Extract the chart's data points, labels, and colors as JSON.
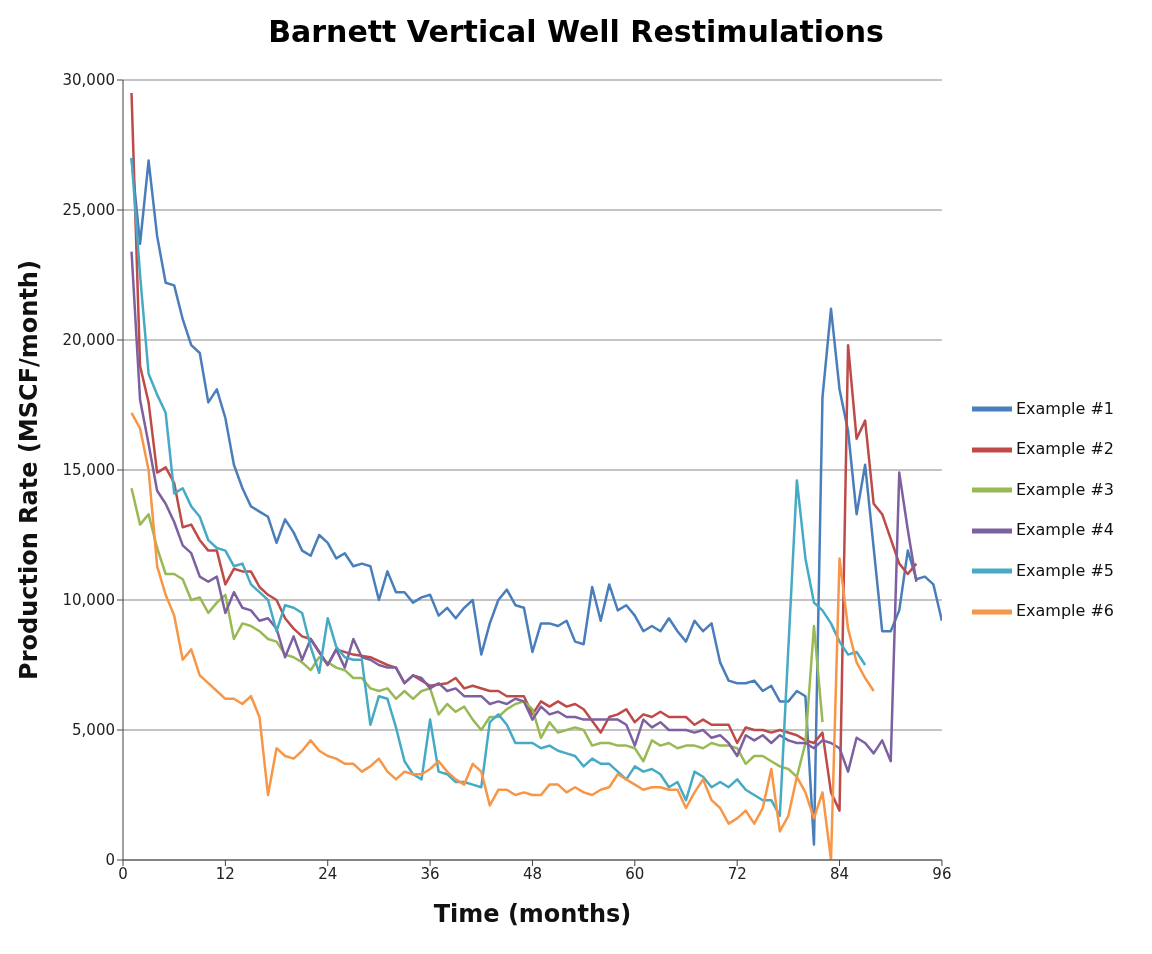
{
  "chart_data": {
    "type": "line",
    "title": "Barnett Vertical Well Restimulations",
    "xlabel": "Time (months)",
    "ylabel": "Production Rate (MSCF/month)",
    "xlim": [
      0,
      96
    ],
    "xticks": [
      0,
      12,
      24,
      36,
      48,
      60,
      72,
      84,
      96
    ],
    "ylim": [
      0,
      30000
    ],
    "yticks": [
      {
        "value": 0,
        "label": "0"
      },
      {
        "value": 5000,
        "label": "5,000"
      },
      {
        "value": 10000,
        "label": "10,000"
      },
      {
        "value": 15000,
        "label": "15,000"
      },
      {
        "value": 20000,
        "label": "20,000"
      },
      {
        "value": 25000,
        "label": "25,000"
      },
      {
        "value": 30000,
        "label": "30,000"
      }
    ],
    "grid": "y",
    "legend": "right",
    "marker": "none",
    "line_style": "solid",
    "series": [
      {
        "name": "Example #1",
        "color": "#4a7ebb",
        "x": [
          1,
          2,
          3,
          4,
          5,
          6,
          7,
          8,
          9,
          10,
          11,
          12,
          13,
          14,
          15,
          16,
          17,
          18,
          19,
          20,
          21,
          22,
          23,
          24,
          25,
          26,
          27,
          28,
          29,
          30,
          31,
          32,
          33,
          34,
          35,
          36,
          37,
          38,
          39,
          40,
          41,
          42,
          43,
          44,
          45,
          46,
          47,
          48,
          49,
          50,
          51,
          52,
          53,
          54,
          55,
          56,
          57,
          58,
          59,
          60,
          61,
          62,
          63,
          64,
          65,
          66,
          67,
          68,
          69,
          70,
          71,
          72,
          73,
          74,
          75,
          76,
          77,
          78,
          79,
          80,
          81,
          82,
          83,
          84,
          85,
          86,
          87,
          89,
          90,
          91,
          92,
          93,
          94,
          95,
          96
        ],
        "values": [
          27000,
          23700,
          26900,
          24000,
          22200,
          22100,
          20800,
          19800,
          19500,
          17600,
          18100,
          17000,
          15200,
          14300,
          13600,
          13400,
          13200,
          12200,
          13100,
          12600,
          11900,
          11700,
          12500,
          12200,
          11600,
          11800,
          11300,
          11400,
          11300,
          10000,
          11100,
          10300,
          10300,
          9900,
          10100,
          10200,
          9400,
          9700,
          9300,
          9700,
          10000,
          7900,
          9100,
          10000,
          10400,
          9800,
          9700,
          8000,
          9100,
          9100,
          9000,
          9200,
          8400,
          8300,
          10500,
          9200,
          10600,
          9600,
          9800,
          9400,
          8800,
          9000,
          8800,
          9300,
          8800,
          8400,
          9200,
          8800,
          9100,
          7600,
          6900,
          6800,
          6800,
          6900,
          6500,
          6700,
          6100,
          6100,
          6500,
          6300,
          600,
          17800,
          21200,
          18100,
          16500,
          13300,
          15200,
          8800,
          8800,
          9600,
          11900,
          10800,
          10900,
          10600,
          9200
        ]
      },
      {
        "name": "Example #2",
        "color": "#be4b48",
        "x": [
          1,
          2,
          3,
          4,
          5,
          6,
          7,
          8,
          9,
          10,
          11,
          12,
          13,
          14,
          15,
          16,
          17,
          18,
          19,
          20,
          21,
          22,
          24,
          25,
          27,
          29,
          31,
          32,
          33,
          34,
          36,
          38,
          39,
          40,
          41,
          43,
          44,
          45,
          47,
          48,
          49,
          50,
          51,
          52,
          53,
          54,
          56,
          57,
          58,
          59,
          60,
          61,
          62,
          63,
          64,
          66,
          67,
          68,
          69,
          71,
          72,
          73,
          74,
          75,
          76,
          77,
          79,
          80,
          81,
          82,
          83,
          84,
          85,
          86,
          87,
          88,
          89,
          91,
          92,
          93
        ],
        "values": [
          29500,
          19000,
          17600,
          14900,
          15100,
          14500,
          12800,
          12900,
          12300,
          11900,
          11900,
          10600,
          11200,
          11100,
          11100,
          10500,
          10200,
          10000,
          9300,
          8900,
          8600,
          8500,
          7500,
          8100,
          7900,
          7800,
          7500,
          7400,
          6800,
          7100,
          6700,
          6800,
          7000,
          6600,
          6700,
          6500,
          6500,
          6300,
          6300,
          5600,
          6100,
          5900,
          6100,
          5900,
          6000,
          5800,
          4900,
          5500,
          5600,
          5800,
          5300,
          5600,
          5500,
          5700,
          5500,
          5500,
          5200,
          5400,
          5200,
          5200,
          4500,
          5100,
          5000,
          5000,
          4900,
          5000,
          4800,
          4600,
          4500,
          4900,
          2600,
          1900,
          19800,
          16200,
          16900,
          13700,
          13300,
          11400,
          11000,
          11400
        ]
      },
      {
        "name": "Example #3",
        "color": "#98b954",
        "x": [
          1,
          2,
          3,
          4,
          5,
          6,
          7,
          8,
          9,
          10,
          11,
          12,
          13,
          14,
          15,
          16,
          17,
          18,
          19,
          20,
          21,
          22,
          23,
          24,
          25,
          26,
          27,
          28,
          29,
          30,
          31,
          32,
          33,
          34,
          35,
          36,
          37,
          38,
          39,
          40,
          41,
          42,
          43,
          44,
          45,
          46,
          47,
          48,
          49,
          50,
          51,
          52,
          53,
          54,
          55,
          56,
          57,
          58,
          59,
          60,
          61,
          62,
          63,
          64,
          65,
          66,
          67,
          68,
          69,
          70,
          71,
          72,
          73,
          74,
          75,
          76,
          77,
          78,
          79,
          80,
          81,
          82
        ],
        "values": [
          14300,
          12900,
          13300,
          12000,
          11000,
          11000,
          10800,
          10000,
          10100,
          9500,
          9900,
          10200,
          8500,
          9100,
          9000,
          8800,
          8500,
          8400,
          7900,
          7800,
          7600,
          7300,
          7800,
          7600,
          7400,
          7300,
          7000,
          7000,
          6600,
          6500,
          6600,
          6200,
          6500,
          6200,
          6500,
          6600,
          5600,
          6000,
          5700,
          5900,
          5400,
          5000,
          5500,
          5500,
          5800,
          6000,
          6100,
          5800,
          4700,
          5300,
          4900,
          5000,
          5100,
          5000,
          4400,
          4500,
          4500,
          4400,
          4400,
          4300,
          3800,
          4600,
          4400,
          4500,
          4300,
          4400,
          4400,
          4300,
          4500,
          4400,
          4400,
          4300,
          3700,
          4000,
          4000,
          3800,
          3600,
          3500,
          3200,
          4500,
          9000,
          5300
        ]
      },
      {
        "name": "Example #4",
        "color": "#7d60a0",
        "x": [
          1,
          2,
          3,
          4,
          5,
          6,
          7,
          8,
          9,
          10,
          11,
          12,
          13,
          14,
          15,
          16,
          17,
          18,
          19,
          20,
          21,
          22,
          23,
          24,
          25,
          26,
          27,
          28,
          29,
          30,
          31,
          32,
          33,
          34,
          35,
          36,
          37,
          38,
          39,
          40,
          41,
          42,
          43,
          44,
          45,
          46,
          47,
          48,
          49,
          50,
          51,
          52,
          53,
          54,
          55,
          56,
          57,
          58,
          59,
          60,
          61,
          62,
          63,
          64,
          65,
          66,
          67,
          68,
          69,
          70,
          71,
          72,
          73,
          74,
          75,
          76,
          77,
          78,
          79,
          80,
          81,
          82,
          83,
          84,
          85,
          86,
          87,
          88,
          89,
          90,
          91,
          92,
          93
        ],
        "values": [
          23400,
          17700,
          16000,
          14200,
          13700,
          13000,
          12100,
          11800,
          10900,
          10700,
          10900,
          9500,
          10300,
          9700,
          9600,
          9200,
          9300,
          8900,
          7800,
          8600,
          7700,
          8500,
          8000,
          7500,
          8100,
          7400,
          8500,
          7800,
          7700,
          7500,
          7400,
          7400,
          6800,
          7100,
          7000,
          6600,
          6800,
          6500,
          6600,
          6300,
          6300,
          6300,
          6000,
          6100,
          6000,
          6200,
          6100,
          5400,
          5900,
          5600,
          5700,
          5500,
          5500,
          5400,
          5400,
          5400,
          5400,
          5400,
          5200,
          4400,
          5400,
          5100,
          5300,
          5000,
          5000,
          5000,
          4900,
          5000,
          4700,
          4800,
          4500,
          4000,
          4800,
          4600,
          4800,
          4500,
          4800,
          4600,
          4500,
          4500,
          4300,
          4600,
          4500,
          4300,
          3400,
          4700,
          4500,
          4100,
          4600,
          3800,
          14900,
          12700,
          10700
        ]
      },
      {
        "name": "Example #5",
        "color": "#46aac5",
        "x": [
          1,
          2,
          3,
          4,
          5,
          6,
          7,
          8,
          9,
          10,
          11,
          12,
          13,
          14,
          15,
          16,
          17,
          18,
          19,
          20,
          21,
          22,
          23,
          24,
          25,
          26,
          27,
          28,
          29,
          30,
          31,
          32,
          33,
          34,
          35,
          36,
          37,
          38,
          39,
          40,
          41,
          42,
          43,
          44,
          45,
          46,
          47,
          48,
          49,
          50,
          51,
          52,
          53,
          54,
          55,
          56,
          57,
          58,
          59,
          60,
          61,
          62,
          63,
          64,
          65,
          66,
          67,
          68,
          69,
          70,
          71,
          72,
          73,
          74,
          75,
          76,
          77,
          79,
          80,
          81,
          82,
          83,
          84,
          85,
          86,
          87
        ],
        "values": [
          27000,
          22500,
          18700,
          17900,
          17200,
          14100,
          14300,
          13600,
          13200,
          12300,
          12000,
          11900,
          11300,
          11400,
          10600,
          10300,
          10000,
          8800,
          9800,
          9700,
          9500,
          8200,
          7200,
          9300,
          8200,
          7800,
          7700,
          7700,
          5200,
          6300,
          6200,
          5100,
          3800,
          3300,
          3100,
          5400,
          3400,
          3300,
          3000,
          3000,
          2900,
          2800,
          5300,
          5600,
          5200,
          4500,
          4500,
          4500,
          4300,
          4400,
          4200,
          4100,
          4000,
          3600,
          3900,
          3700,
          3700,
          3400,
          3100,
          3600,
          3400,
          3500,
          3300,
          2800,
          3000,
          2300,
          3400,
          3200,
          2800,
          3000,
          2800,
          3100,
          2700,
          2500,
          2300,
          2300,
          1700,
          14600,
          11600,
          9900,
          9600,
          9100,
          8400,
          7900,
          8000,
          7500
        ]
      },
      {
        "name": "Example #6",
        "color": "#f79646",
        "x": [
          1,
          2,
          3,
          4,
          5,
          6,
          7,
          8,
          9,
          10,
          11,
          12,
          13,
          14,
          15,
          16,
          17,
          18,
          19,
          20,
          21,
          22,
          23,
          24,
          25,
          26,
          27,
          28,
          29,
          30,
          31,
          32,
          33,
          34,
          35,
          36,
          37,
          38,
          39,
          40,
          41,
          42,
          43,
          44,
          45,
          46,
          47,
          48,
          49,
          50,
          51,
          52,
          53,
          54,
          55,
          56,
          57,
          58,
          59,
          60,
          61,
          62,
          63,
          64,
          65,
          66,
          67,
          68,
          69,
          70,
          71,
          72,
          73,
          74,
          75,
          76,
          77,
          78,
          79,
          80,
          81,
          82,
          83,
          84,
          85,
          86,
          87,
          88
        ],
        "values": [
          17200,
          16600,
          15000,
          11300,
          10200,
          9400,
          7700,
          8100,
          7100,
          6800,
          6500,
          6200,
          6200,
          6000,
          6300,
          5500,
          2500,
          4300,
          4000,
          3900,
          4200,
          4600,
          4200,
          4000,
          3900,
          3700,
          3700,
          3400,
          3600,
          3900,
          3400,
          3100,
          3400,
          3300,
          3300,
          3500,
          3800,
          3400,
          3100,
          2900,
          3700,
          3400,
          2100,
          2700,
          2700,
          2500,
          2600,
          2500,
          2500,
          2900,
          2900,
          2600,
          2800,
          2600,
          2500,
          2700,
          2800,
          3300,
          3100,
          2900,
          2700,
          2800,
          2800,
          2700,
          2700,
          2000,
          2600,
          3100,
          2300,
          2000,
          1400,
          1600,
          1900,
          1400,
          2000,
          3500,
          1100,
          1700,
          3200,
          2600,
          1600,
          2600,
          0,
          11600,
          8900,
          7600,
          7000,
          6500
        ]
      }
    ]
  }
}
